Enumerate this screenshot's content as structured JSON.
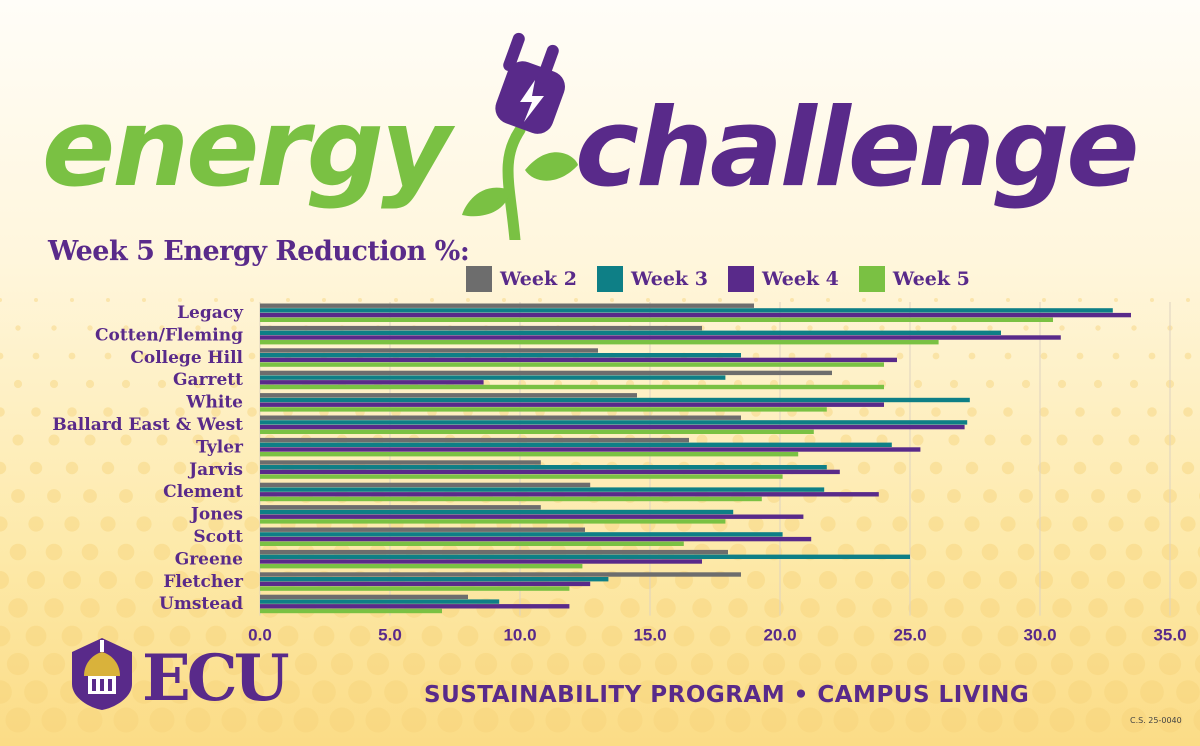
{
  "brand": {
    "word1": "energy",
    "word2": "challenge",
    "org": "ECU",
    "footer": "SUSTAINABILITY PROGRAM • CAMPUS LIVING",
    "code": "C.S. 25-0040"
  },
  "colors": {
    "purple": "#592a8a",
    "green": "#7ac143",
    "gray": "#6d6d6d",
    "teal": "#0e7f86",
    "gold": "#d9b23b"
  },
  "chart_data": {
    "type": "bar",
    "orientation": "horizontal",
    "title": "Week 5 Energy Reduction %:",
    "categories": [
      "Legacy",
      "Cotten/Fleming",
      "College Hill",
      "Garrett",
      "White",
      "Ballard East & West",
      "Tyler",
      "Jarvis",
      "Clement",
      "Jones",
      "Scott",
      "Greene",
      "Fletcher",
      "Umstead"
    ],
    "series": [
      {
        "name": "Week 2",
        "color": "#6d6d6d",
        "values": [
          19.0,
          17.0,
          13.0,
          22.0,
          14.5,
          18.5,
          16.5,
          10.8,
          12.7,
          10.8,
          12.5,
          18.0,
          18.5,
          8.0
        ]
      },
      {
        "name": "Week 3",
        "color": "#0e7f86",
        "values": [
          32.8,
          28.5,
          18.5,
          17.9,
          27.3,
          27.2,
          24.3,
          21.8,
          21.7,
          18.2,
          20.1,
          25.0,
          13.4,
          9.2
        ]
      },
      {
        "name": "Week 4",
        "color": "#592a8a",
        "values": [
          33.5,
          30.8,
          24.5,
          8.6,
          24.0,
          27.1,
          25.4,
          22.3,
          23.8,
          20.9,
          21.2,
          17.0,
          12.7,
          11.9
        ]
      },
      {
        "name": "Week 5",
        "color": "#7ac143",
        "values": [
          30.5,
          26.1,
          24.0,
          24.0,
          21.8,
          21.3,
          20.7,
          20.1,
          19.3,
          17.9,
          16.3,
          12.4,
          11.9,
          7.0
        ]
      }
    ],
    "xlim": [
      0,
      35
    ],
    "xticks": [
      "0.0",
      "5.0",
      "10.0",
      "15.0",
      "20.0",
      "25.0",
      "30.0",
      "35.0"
    ],
    "grid": true,
    "legend": "top"
  }
}
